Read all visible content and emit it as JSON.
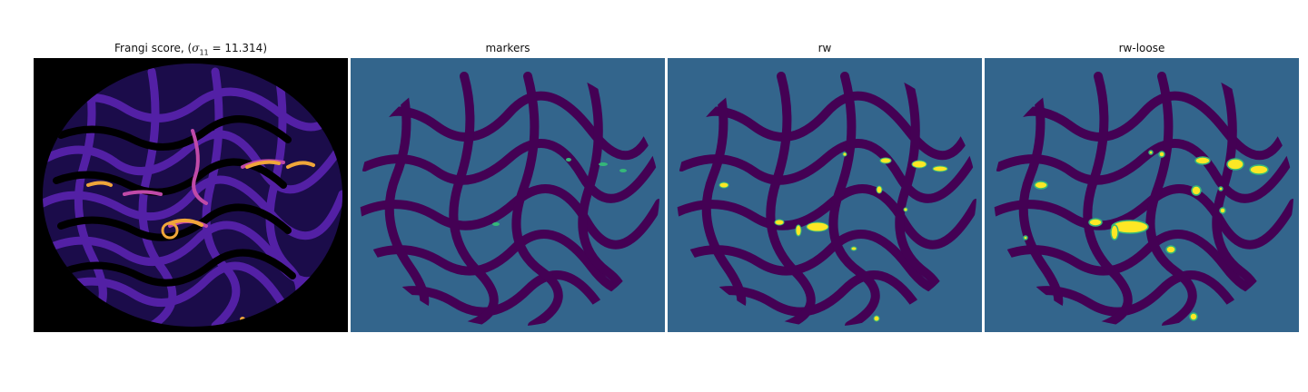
{
  "figure": {
    "panels": [
      {
        "title_prefix": "Frangi score, (",
        "title_symbol": "σ",
        "title_subscript": "11",
        "title_suffix": " = 11.314)"
      },
      {
        "title": "markers"
      },
      {
        "title": "rw"
      },
      {
        "title": "rw-loose"
      }
    ]
  },
  "colors": {
    "frangi_background": "#000000",
    "frangi_low": "#2a0f6b",
    "frangi_mid": "#7b2fd0",
    "frangi_high": "#f0a63a",
    "segment_background": "#33658c",
    "segment_dark": "#440154",
    "segment_green": "#35b779",
    "segment_yellow": "#fde725"
  }
}
